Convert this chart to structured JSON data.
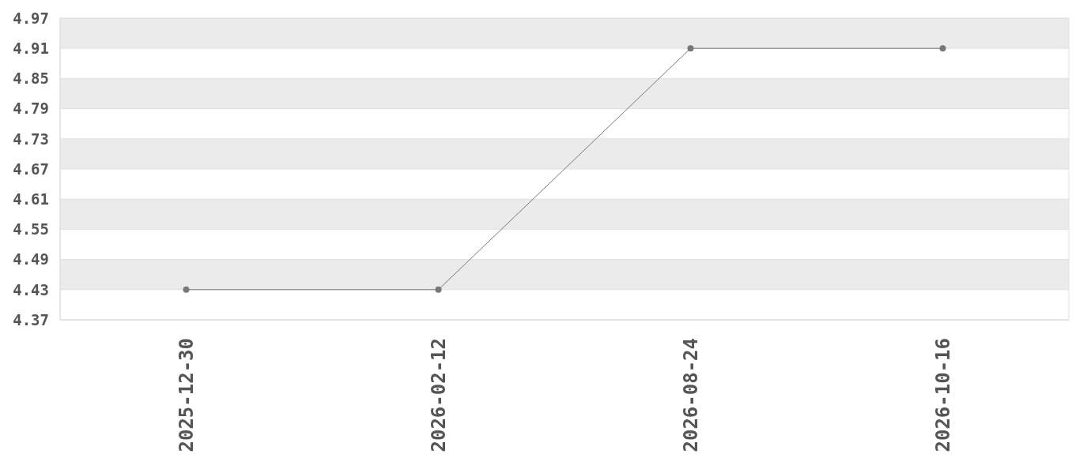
{
  "chart_data": {
    "type": "line",
    "categories": [
      "2025-12-30",
      "2026-02-12",
      "2026-08-24",
      "2026-10-16"
    ],
    "series": [
      {
        "color": "#777777",
        "values": [
          4.43,
          4.43,
          4.91,
          4.91
        ]
      }
    ],
    "ylim": [
      4.37,
      4.97
    ],
    "yticks": [
      4.37,
      4.43,
      4.49,
      4.55,
      4.61,
      4.67,
      4.73,
      4.79,
      4.85,
      4.91,
      4.97
    ],
    "grid": "y",
    "marker": "circle",
    "line_style": "solid"
  }
}
